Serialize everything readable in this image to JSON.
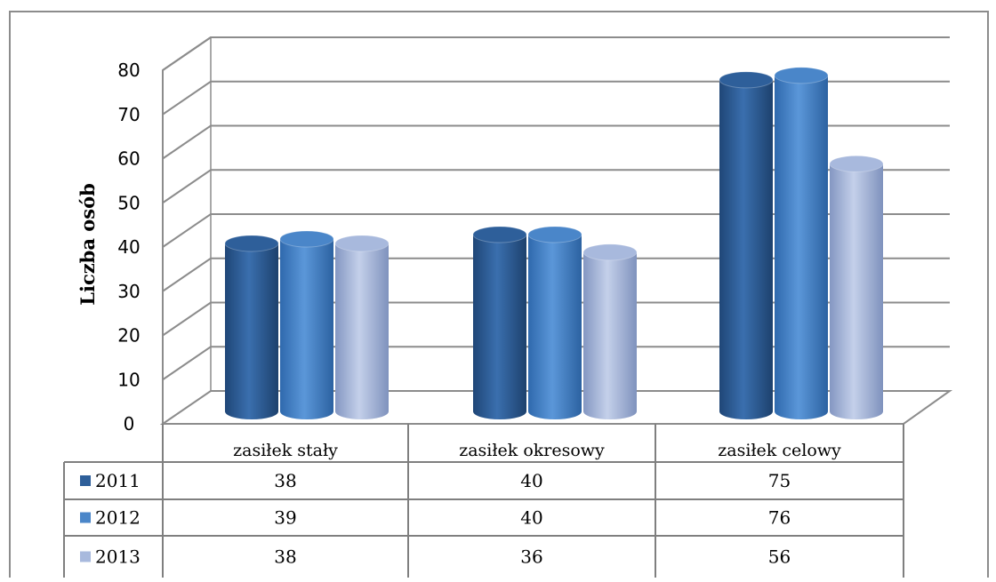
{
  "chart_data": {
    "type": "bar",
    "style": "3d-cylinder",
    "ylabel": "Liczba osób",
    "ylim": [
      0,
      80
    ],
    "yticks": [
      "0",
      "10",
      "20",
      "30",
      "40",
      "50",
      "60",
      "70",
      "80"
    ],
    "grid": true,
    "legend": "data-table-below",
    "categories": [
      "zasiłek stały",
      "zasiłek okresowy",
      "zasiłek celowy"
    ],
    "series": [
      {
        "name": "2011",
        "values": [
          38,
          40,
          75
        ],
        "color": "#2e5f9a"
      },
      {
        "name": "2012",
        "values": [
          39,
          40,
          76
        ],
        "color": "#4a86c9"
      },
      {
        "name": "2013",
        "values": [
          38,
          36,
          56
        ],
        "color": "#a8b9dd"
      }
    ]
  }
}
